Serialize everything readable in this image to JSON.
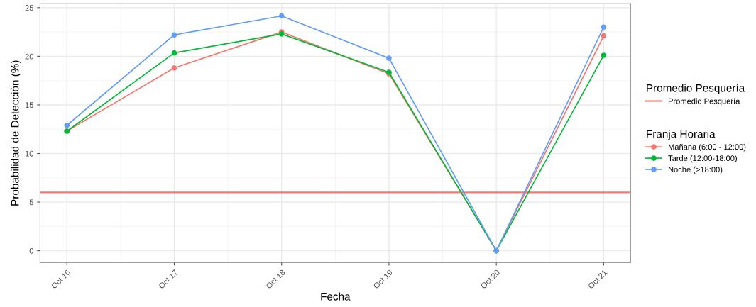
{
  "chart_data": {
    "type": "line",
    "xlabel": "Fecha",
    "ylabel": "Probabilidad de Detección (%)",
    "legend_title": "Franja Horaria",
    "annotations": [
      "Promedio Pesquería"
    ],
    "categories": [
      "Oct 16",
      "Oct 17",
      "Oct 18",
      "Oct 19",
      "Oct 20",
      "Oct 21"
    ],
    "series": [
      {
        "name": "Mañana (6:00 - 12:00)",
        "color": "#f8766d",
        "values": [
          12.3,
          18.8,
          22.5,
          18.2,
          0,
          22.1
        ]
      },
      {
        "name": "Tarde (12:00-18:00)",
        "color": "#00ba38",
        "values": [
          12.3,
          20.35,
          22.3,
          18.35,
          0,
          20.1
        ]
      },
      {
        "name": "Noche (>18:00)",
        "color": "#619cff",
        "values": [
          12.9,
          22.2,
          24.15,
          19.8,
          0,
          23.0
        ]
      }
    ],
    "ref_lines": [
      {
        "axis": "y",
        "value": 6.0,
        "label": "Promedio Pesquería",
        "color": "#f8766d"
      }
    ],
    "ylim": [
      -1.21,
      25.41
    ],
    "yticks": [
      0,
      5,
      10,
      15,
      20,
      25
    ],
    "grid": true,
    "legend": "right",
    "marker": "circle",
    "line_style": "solid"
  }
}
